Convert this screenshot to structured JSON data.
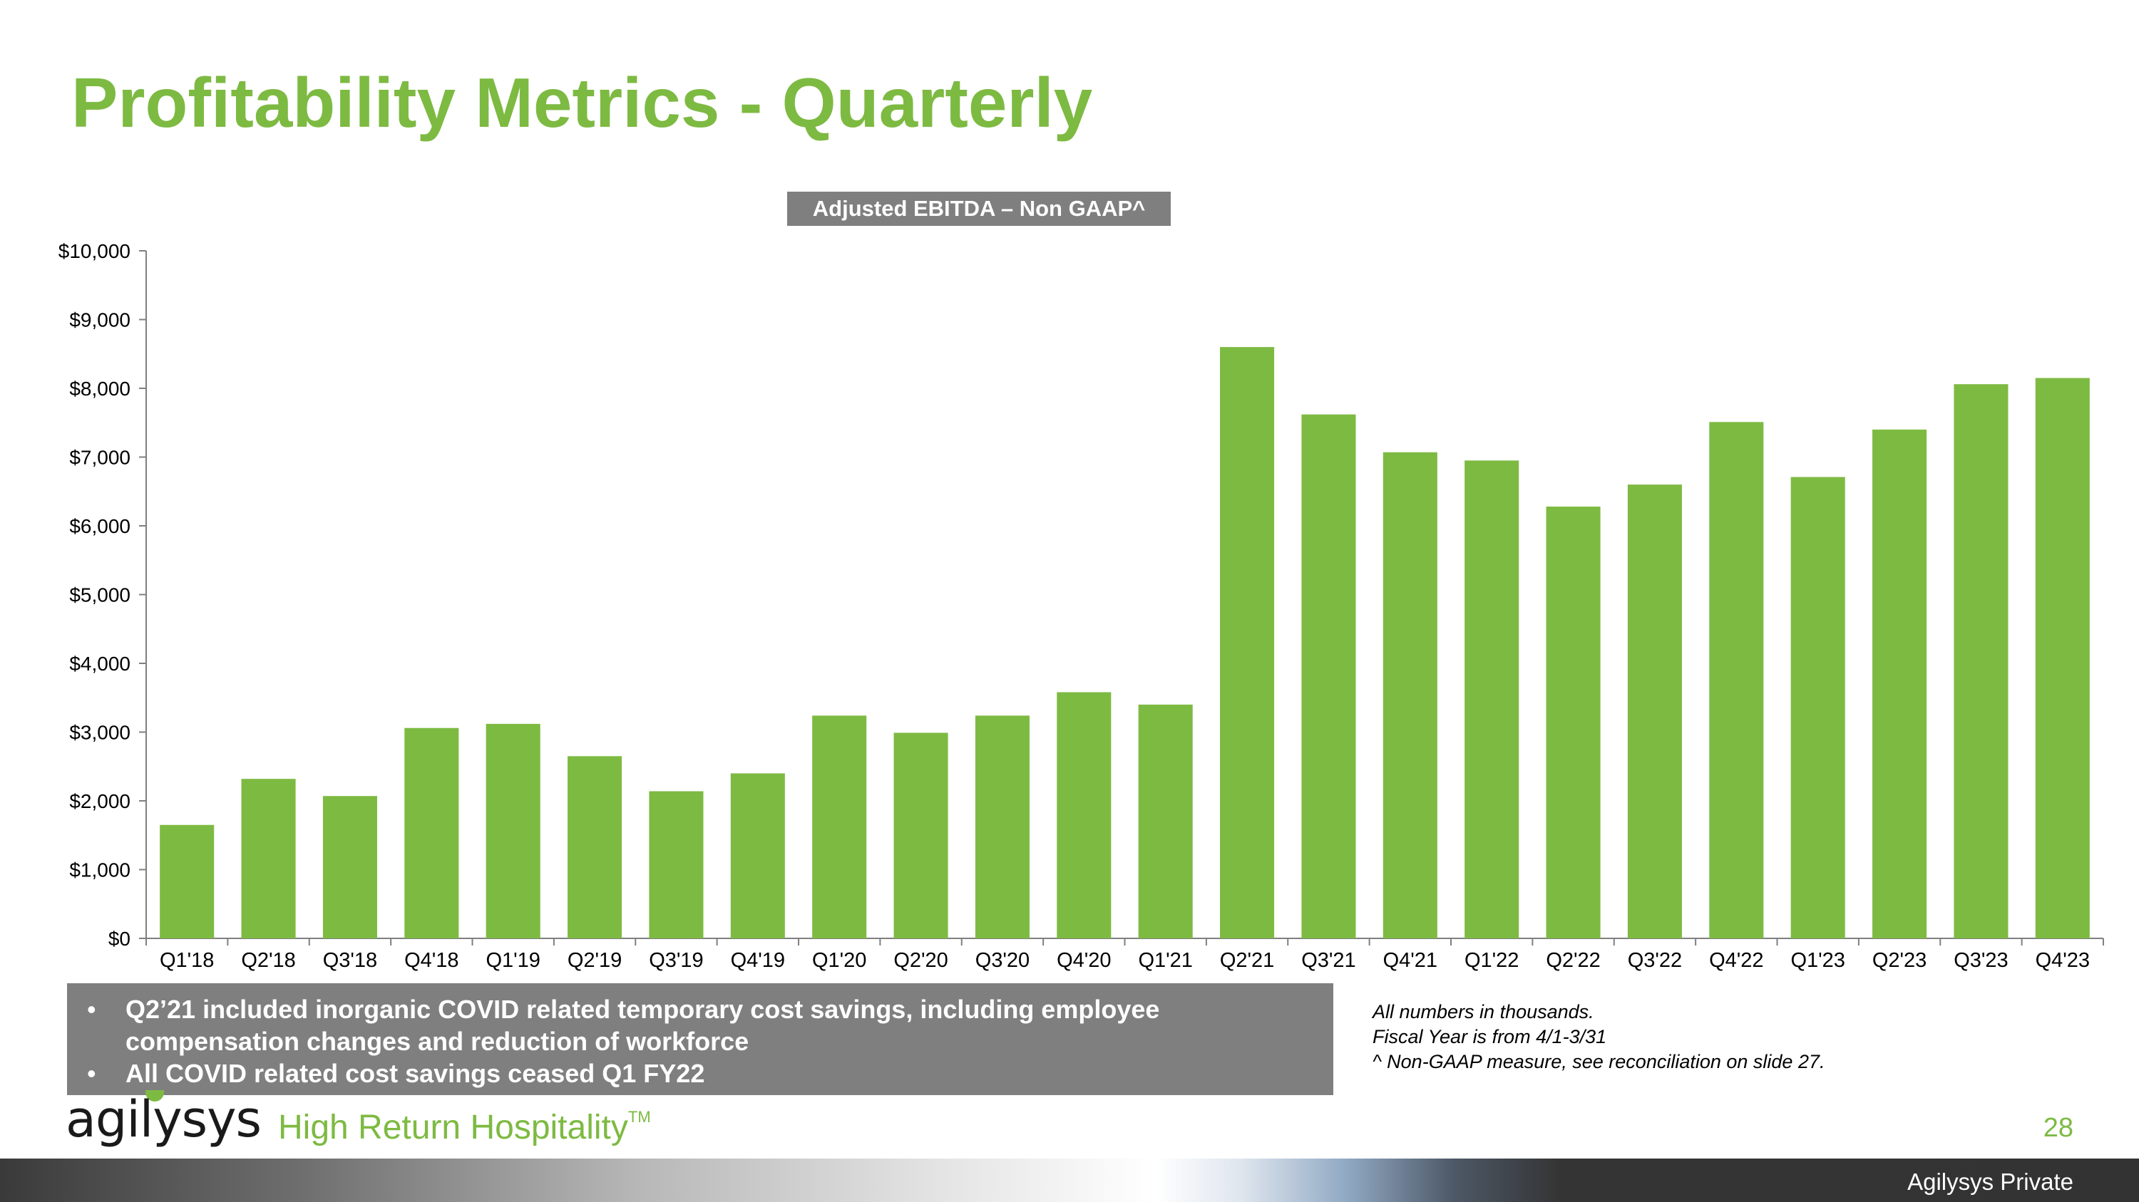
{
  "slide": {
    "title": "Profitability Metrics - Quarterly",
    "page_number": "28",
    "classification": "Agilysys Private"
  },
  "brand": {
    "logo_text": "agilysys",
    "tagline": "High Return Hospitality",
    "tagline_mark": "TM",
    "accent_color": "#7dba42",
    "box_color": "#7f7f7f"
  },
  "chart_data": {
    "type": "bar",
    "title": "Adjusted EBITDA – Non GAAP^",
    "xlabel": "",
    "ylabel": "",
    "categories": [
      "Q1'18",
      "Q2'18",
      "Q3'18",
      "Q4'18",
      "Q1'19",
      "Q2'19",
      "Q3'19",
      "Q4'19",
      "Q1'20",
      "Q2'20",
      "Q3'20",
      "Q4'20",
      "Q1'21",
      "Q2'21",
      "Q3'21",
      "Q4'21",
      "Q1'22",
      "Q2'22",
      "Q3'22",
      "Q4'22",
      "Q1'23",
      "Q2'23",
      "Q3'23",
      "Q4'23"
    ],
    "values": [
      1650,
      2320,
      2070,
      3060,
      3120,
      2650,
      2140,
      2400,
      3240,
      2990,
      3240,
      3580,
      3400,
      8600,
      7620,
      7070,
      6950,
      6280,
      6600,
      7510,
      6710,
      7400,
      8060,
      8150
    ],
    "ylim": [
      0,
      10000
    ],
    "yticks": [
      "$0",
      "$1,000",
      "$2,000",
      "$3,000",
      "$4,000",
      "$5,000",
      "$6,000",
      "$7,000",
      "$8,000",
      "$9,000",
      "$10,000"
    ],
    "grid": false,
    "legend": "none",
    "bar_color": "#7dba42"
  },
  "notes": [
    "Q2’21 included inorganic COVID related temporary cost savings, including employee compensation changes and reduction of workforce",
    "All COVID related cost savings ceased Q1 FY22"
  ],
  "footnotes": [
    "All numbers in thousands.",
    "Fiscal Year is from 4/1-3/31",
    "^ Non-GAAP measure, see reconciliation on slide 27."
  ]
}
